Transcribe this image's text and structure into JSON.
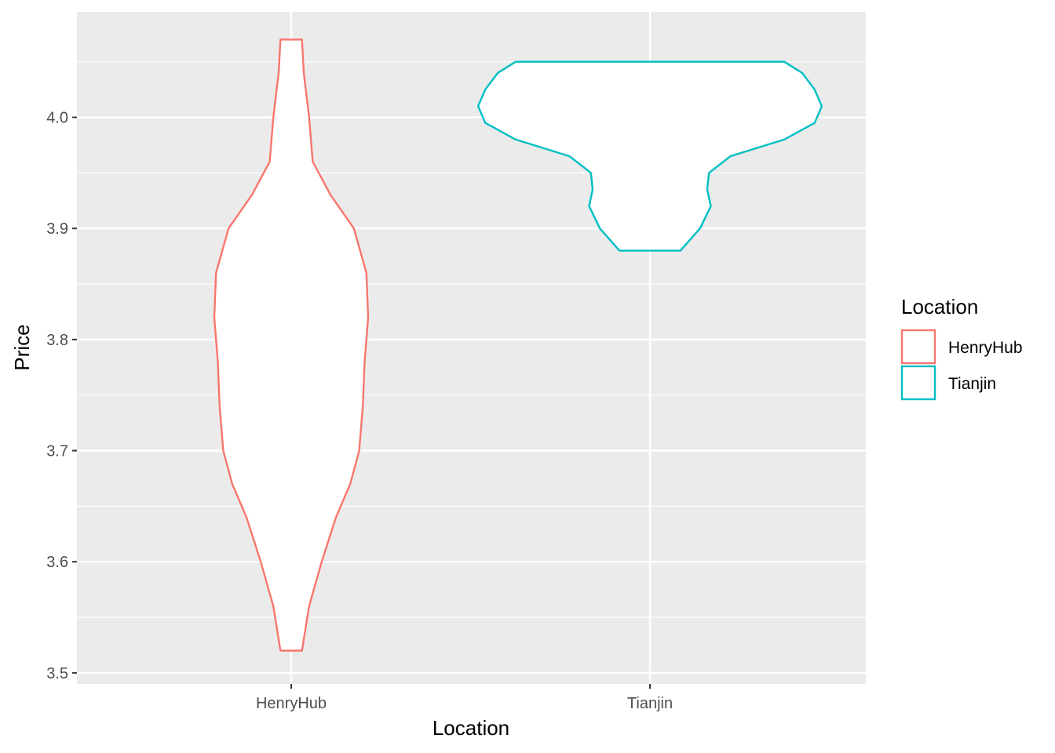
{
  "chart_data": {
    "type": "violin",
    "xlabel": "Location",
    "ylabel": "Price",
    "categories": [
      "HenryHub",
      "Tianjin"
    ],
    "ylim": [
      3.49,
      4.095
    ],
    "yticks": [
      3.5,
      3.6,
      3.7,
      3.8,
      3.9,
      4.0
    ],
    "ytick_labels": [
      "3.5",
      "3.6",
      "3.7",
      "3.8",
      "3.9",
      "4.0"
    ],
    "grid": true,
    "legend": {
      "title": "Location",
      "position": "right",
      "entries": [
        "HenryHub",
        "Tianjin"
      ]
    },
    "series": [
      {
        "name": "HenryHub",
        "color": "#F8766D",
        "min": 3.52,
        "max": 4.07,
        "density_profile": [
          [
            3.52,
            0.06
          ],
          [
            3.56,
            0.1
          ],
          [
            3.6,
            0.17
          ],
          [
            3.64,
            0.25
          ],
          [
            3.67,
            0.33
          ],
          [
            3.7,
            0.38
          ],
          [
            3.74,
            0.4
          ],
          [
            3.78,
            0.41
          ],
          [
            3.82,
            0.43
          ],
          [
            3.86,
            0.42
          ],
          [
            3.9,
            0.35
          ],
          [
            3.93,
            0.22
          ],
          [
            3.96,
            0.12
          ],
          [
            4.0,
            0.1
          ],
          [
            4.04,
            0.07
          ],
          [
            4.07,
            0.06
          ]
        ]
      },
      {
        "name": "Tianjin",
        "color": "#00BFC4",
        "min": 3.88,
        "max": 4.05,
        "density_profile": [
          [
            3.88,
            0.17
          ],
          [
            3.9,
            0.28
          ],
          [
            3.92,
            0.34
          ],
          [
            3.935,
            0.32
          ],
          [
            3.95,
            0.33
          ],
          [
            3.965,
            0.45
          ],
          [
            3.98,
            0.75
          ],
          [
            3.995,
            0.92
          ],
          [
            4.01,
            0.96
          ],
          [
            4.025,
            0.92
          ],
          [
            4.04,
            0.85
          ],
          [
            4.05,
            0.75
          ]
        ]
      }
    ]
  }
}
